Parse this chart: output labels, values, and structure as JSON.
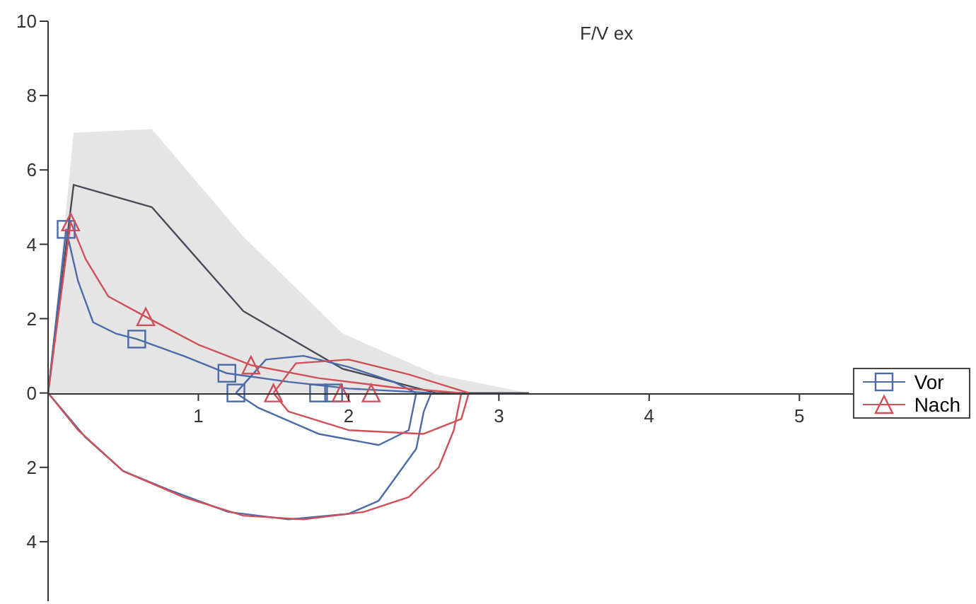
{
  "chart_data": {
    "type": "line",
    "title": "F/V ex",
    "xlim": [
      0,
      6.1
    ],
    "xticks": [
      1,
      2,
      3,
      4,
      5
    ],
    "ylim": [
      -5.6,
      10
    ],
    "yticks": [
      {
        "value": -4,
        "label": "4"
      },
      {
        "value": -2,
        "label": "2"
      },
      0,
      2,
      4,
      6,
      8,
      10
    ],
    "legend": "right",
    "line_style": "solid",
    "series": [
      {
        "color": "#4a4a5a",
        "x": [
          0,
          0.17,
          0.69,
          1.3,
          1.96,
          2.58,
          3.2
        ],
        "values": [
          0,
          5.6,
          5.0,
          2.2,
          0.65,
          0,
          0
        ],
        "lower": [
          0,
          0,
          0,
          0,
          0,
          0,
          0
        ],
        "upper": [
          0,
          7.0,
          7.1,
          4.2,
          1.6,
          0.5,
          0
        ]
      },
      {
        "color": "#4a6aa8",
        "x": [
          0,
          0.12,
          0.2,
          0.3,
          0.45,
          0.59,
          0.9,
          1.19,
          1.6,
          2.0,
          2.55
        ],
        "values": [
          0,
          4.4,
          3.0,
          1.9,
          1.6,
          1.45,
          1.0,
          0.53,
          0.3,
          0.12,
          0
        ]
      },
      {
        "color": "#4a6aa8",
        "x": [
          0,
          0.25,
          0.5,
          0.8,
          1.2,
          1.6,
          2.0,
          2.2,
          2.45,
          2.5,
          2.55
        ],
        "values": [
          0,
          -1.2,
          -2.1,
          -2.6,
          -3.2,
          -3.4,
          -3.25,
          -2.9,
          -1.5,
          -0.5,
          0
        ]
      },
      {
        "color": "#4a6aa8",
        "x": [
          1.25,
          1.45,
          1.7,
          2.0,
          2.3,
          2.45
        ],
        "values": [
          0,
          0.9,
          1.0,
          0.7,
          0.3,
          0
        ]
      },
      {
        "color": "#4a6aa8",
        "x": [
          1.25,
          1.4,
          1.8,
          2.2,
          2.4,
          2.45
        ],
        "values": [
          0,
          -0.4,
          -1.1,
          -1.4,
          -1.0,
          0
        ]
      },
      {
        "color": "#d0505a",
        "x": [
          0,
          0.15,
          0.25,
          0.4,
          0.65,
          1.0,
          1.35,
          1.8,
          2.3,
          2.75
        ],
        "values": [
          0,
          4.6,
          3.6,
          2.6,
          2.05,
          1.3,
          0.75,
          0.4,
          0.15,
          0
        ]
      },
      {
        "color": "#d0505a",
        "x": [
          0,
          0.2,
          0.5,
          0.9,
          1.3,
          1.7,
          2.1,
          2.4,
          2.6,
          2.7,
          2.75
        ],
        "values": [
          0,
          -1.0,
          -2.1,
          -2.8,
          -3.3,
          -3.4,
          -3.2,
          -2.8,
          -2.0,
          -1.0,
          0
        ]
      },
      {
        "color": "#d0505a",
        "x": [
          1.5,
          1.65,
          2.0,
          2.4,
          2.8
        ],
        "values": [
          0,
          0.8,
          0.9,
          0.5,
          0
        ]
      },
      {
        "color": "#d0505a",
        "x": [
          1.5,
          1.6,
          2.0,
          2.5,
          2.75,
          2.8
        ],
        "values": [
          0,
          -0.5,
          -1.0,
          -1.1,
          -0.7,
          0
        ]
      },
      {
        "name": "Vor",
        "type": "scatter",
        "color": "#4a6aa8",
        "marker": "square",
        "x": [
          0.12,
          0.59,
          1.19,
          1.25,
          1.8,
          1.9
        ],
        "values": [
          4.4,
          1.45,
          0.53,
          0,
          0,
          0
        ]
      },
      {
        "name": "Nach",
        "type": "scatter",
        "color": "#d0505a",
        "marker": "triangle",
        "x": [
          0.15,
          0.65,
          1.35,
          1.5,
          1.95,
          2.15
        ],
        "values": [
          4.6,
          2.05,
          0.75,
          0,
          0,
          0
        ]
      }
    ]
  }
}
